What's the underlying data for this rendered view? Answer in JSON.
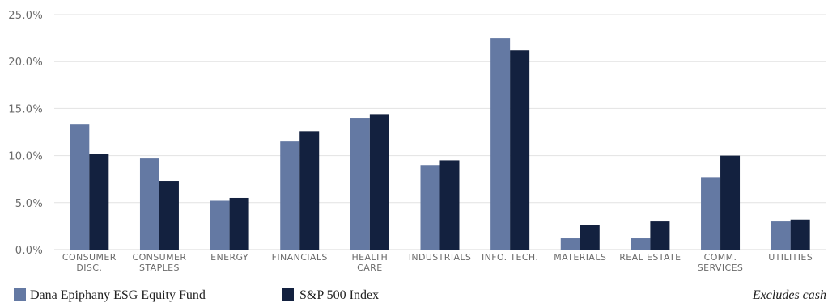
{
  "chart_data": {
    "type": "bar",
    "categories": [
      [
        "CONSUMER",
        "DISC."
      ],
      [
        "CONSUMER",
        "STAPLES"
      ],
      [
        "ENERGY"
      ],
      [
        "FINANCIALS"
      ],
      [
        "HEALTH",
        "CARE"
      ],
      [
        "INDUSTRIALS"
      ],
      [
        "INFO. TECH."
      ],
      [
        "MATERIALS"
      ],
      [
        "REAL ESTATE"
      ],
      [
        "COMM.",
        "SERVICES"
      ],
      [
        "UTILITIES"
      ]
    ],
    "series": [
      {
        "name": "Dana Epiphany ESG Equity Fund",
        "color": "#6479a3",
        "values": [
          13.3,
          9.7,
          5.2,
          11.5,
          14.0,
          9.0,
          22.5,
          1.2,
          1.2,
          7.7,
          3.0
        ]
      },
      {
        "name": "S&P 500 Index",
        "color": "#13213f",
        "values": [
          10.2,
          7.3,
          5.5,
          12.6,
          14.4,
          9.5,
          21.2,
          2.6,
          3.0,
          10.0,
          3.2
        ]
      }
    ],
    "ylim": [
      0,
      25
    ],
    "yticks": [
      "0.0%",
      "5.0%",
      "10.0%",
      "15.0%",
      "20.0%",
      "25.0%"
    ],
    "ytick_values": [
      0,
      5,
      10,
      15,
      20,
      25
    ],
    "grid": true,
    "legend_position": "bottom-left",
    "note": "Excludes cash"
  }
}
